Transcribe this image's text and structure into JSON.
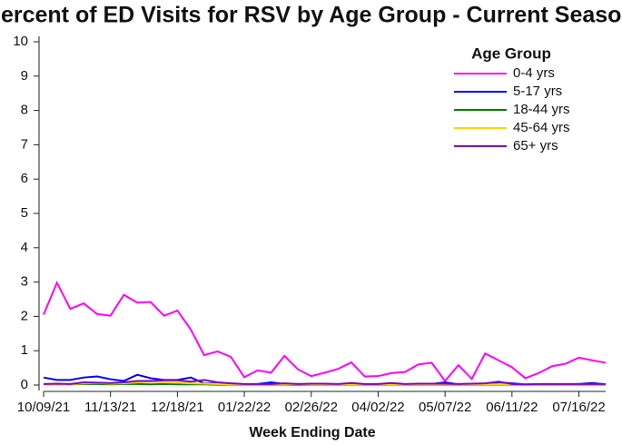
{
  "chart_data": {
    "type": "line",
    "title": "Percent of ED Visits for RSV by Age Group - Current Season",
    "x_label": "Week Ending Date",
    "legend_title": "Age Group",
    "legend": "top-right",
    "categories": [
      "10/09/21",
      null,
      null,
      null,
      null,
      "11/13/21",
      null,
      null,
      null,
      null,
      "12/18/21",
      null,
      null,
      null,
      null,
      "01/22/22",
      null,
      null,
      null,
      null,
      "02/26/22",
      null,
      null,
      null,
      null,
      "04/02/22",
      null,
      null,
      null,
      null,
      "05/07/22",
      null,
      null,
      null,
      null,
      "06/11/22",
      null,
      null,
      null,
      null,
      "07/16/22",
      null,
      null
    ],
    "ylim": [
      0,
      10
    ],
    "yticks": [
      0,
      1,
      2,
      3,
      4,
      5,
      6,
      7,
      8,
      9,
      10
    ],
    "series": [
      {
        "name": "0-4 yrs",
        "color": "#ff00ff",
        "values": [
          2.05,
          2.98,
          2.22,
          2.38,
          2.07,
          2.02,
          2.63,
          2.4,
          2.42,
          2.02,
          2.17,
          1.62,
          0.87,
          0.98,
          0.82,
          0.23,
          0.43,
          0.36,
          0.85,
          0.46,
          0.26,
          0.36,
          0.47,
          0.66,
          0.25,
          0.26,
          0.35,
          0.38,
          0.6,
          0.65,
          0.12,
          0.58,
          0.18,
          0.92,
          0.72,
          0.52,
          0.2,
          0.35,
          0.55,
          0.62,
          0.8,
          0.72,
          0.65
        ]
      },
      {
        "name": "5-17 yrs",
        "color": "#0000ff",
        "values": [
          0.22,
          0.15,
          0.15,
          0.22,
          0.25,
          0.17,
          0.12,
          0.3,
          0.2,
          0.15,
          0.15,
          0.22,
          0.05,
          0.05,
          0.03,
          0.02,
          0.03,
          0.08,
          0.03,
          0.03,
          0.02,
          0.03,
          0.02,
          0.03,
          0.02,
          0.03,
          0.03,
          0.02,
          0.03,
          0.03,
          0.08,
          0.02,
          0.03,
          0.02,
          0.08,
          0.05,
          0.02,
          0.02,
          0.02,
          0.02,
          0.03,
          0.06,
          0.02
        ]
      },
      {
        "name": "18-44 yrs",
        "color": "#008000",
        "values": [
          0.02,
          0.02,
          0.02,
          0.03,
          0.03,
          0.02,
          0.03,
          0.03,
          0.02,
          0.03,
          0.02,
          0.02,
          0.02,
          0.01,
          0.01,
          0.01,
          0.01,
          0.01,
          0.01,
          0.01,
          0.01,
          0.01,
          0.01,
          0.01,
          0.01,
          0.01,
          0.01,
          0.01,
          0.01,
          0.01,
          0.01,
          0.01,
          0.01,
          0.01,
          0.01,
          0.01,
          0.01,
          0.01,
          0.01,
          0.01,
          0.01,
          0.01,
          0.01
        ]
      },
      {
        "name": "45-64 yrs",
        "color": "#ffd700",
        "values": [
          0.02,
          0.03,
          0.02,
          0.05,
          0.06,
          0.04,
          0.05,
          0.08,
          0.1,
          0.08,
          0.07,
          0.05,
          0.04,
          0.03,
          0.02,
          0.02,
          0.02,
          0.02,
          0.02,
          0.03,
          0.02,
          0.02,
          0.02,
          0.02,
          0.02,
          0.02,
          0.02,
          0.02,
          0.02,
          0.02,
          0.02,
          0.02,
          0.02,
          0.02,
          0.02,
          0.02,
          0.02,
          0.02,
          0.02,
          0.02,
          0.02,
          0.02,
          0.02
        ]
      },
      {
        "name": "65+ yrs",
        "color": "#8000c0",
        "values": [
          0.03,
          0.04,
          0.03,
          0.08,
          0.07,
          0.06,
          0.08,
          0.12,
          0.12,
          0.14,
          0.14,
          0.1,
          0.15,
          0.08,
          0.05,
          0.03,
          0.03,
          0.03,
          0.05,
          0.03,
          0.04,
          0.04,
          0.03,
          0.06,
          0.03,
          0.03,
          0.06,
          0.03,
          0.04,
          0.04,
          0.04,
          0.03,
          0.04,
          0.05,
          0.1,
          0.03,
          0.02,
          0.03,
          0.03,
          0.03,
          0.03,
          0.03,
          0.03
        ]
      }
    ]
  }
}
